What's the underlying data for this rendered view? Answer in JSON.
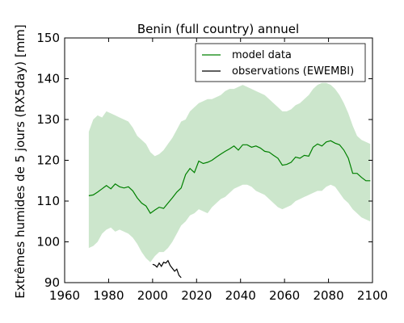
{
  "chart_data": {
    "type": "line",
    "title": "Benin (full country) annuel",
    "xlabel": "",
    "ylabel": "Extrêmes humides de 5 jours (RX5day) [mm]",
    "xlim": [
      1960,
      2100
    ],
    "ylim": [
      90,
      150
    ],
    "xticks": [
      1960,
      1980,
      2000,
      2020,
      2040,
      2060,
      2080,
      2100
    ],
    "yticks": [
      90,
      100,
      110,
      120,
      130,
      140,
      150
    ],
    "legend": {
      "position": "top-right"
    },
    "grid": false,
    "series": [
      {
        "name": "model data",
        "kind": "line",
        "color": "#008000",
        "x": [
          1971,
          1973,
          1975,
          1977,
          1979,
          1981,
          1983,
          1985,
          1987,
          1989,
          1991,
          1993,
          1995,
          1997,
          1999,
          2001,
          2003,
          2005,
          2007,
          2009,
          2011,
          2013,
          2015,
          2017,
          2019,
          2021,
          2023,
          2025,
          2027,
          2029,
          2031,
          2033,
          2035,
          2037,
          2039,
          2041,
          2043,
          2045,
          2047,
          2049,
          2051,
          2053,
          2055,
          2057,
          2059,
          2061,
          2063,
          2065,
          2067,
          2069,
          2071,
          2073,
          2075,
          2077,
          2079,
          2081,
          2083,
          2085,
          2087,
          2089,
          2091,
          2093,
          2095,
          2097,
          2099
        ],
        "y": [
          111.3,
          111.5,
          112.2,
          113.0,
          113.8,
          113.0,
          114.2,
          113.5,
          113.2,
          113.5,
          112.5,
          110.8,
          109.5,
          108.8,
          107.0,
          107.8,
          108.5,
          108.2,
          109.5,
          110.8,
          112.2,
          113.2,
          116.5,
          118.0,
          117.0,
          119.8,
          119.2,
          119.5,
          120.0,
          120.8,
          121.5,
          122.2,
          122.8,
          123.5,
          122.5,
          123.8,
          123.8,
          123.2,
          123.5,
          123.0,
          122.2,
          122.0,
          121.2,
          120.5,
          118.8,
          119.0,
          119.5,
          120.8,
          120.5,
          121.2,
          121.0,
          123.2,
          124.0,
          123.5,
          124.5,
          124.8,
          124.2,
          123.8,
          122.5,
          120.5,
          116.8,
          116.8,
          115.8,
          115.0,
          115.0
        ]
      },
      {
        "name": "model range",
        "kind": "band",
        "color": "#008000",
        "x": [
          1971,
          1973,
          1975,
          1977,
          1979,
          1981,
          1983,
          1985,
          1987,
          1989,
          1991,
          1993,
          1995,
          1997,
          1999,
          2001,
          2003,
          2005,
          2007,
          2009,
          2011,
          2013,
          2015,
          2017,
          2019,
          2021,
          2023,
          2025,
          2027,
          2029,
          2031,
          2033,
          2035,
          2037,
          2039,
          2041,
          2043,
          2045,
          2047,
          2049,
          2051,
          2053,
          2055,
          2057,
          2059,
          2061,
          2063,
          2065,
          2067,
          2069,
          2071,
          2073,
          2075,
          2077,
          2079,
          2081,
          2083,
          2085,
          2087,
          2089,
          2091,
          2093,
          2095,
          2097,
          2099
        ],
        "lower": [
          98.5,
          99.0,
          100.0,
          102.0,
          103.0,
          103.5,
          102.5,
          103.0,
          102.5,
          102.0,
          101.0,
          99.5,
          97.5,
          96.0,
          95.0,
          96.5,
          97.5,
          97.5,
          98.5,
          100.0,
          102.0,
          104.0,
          105.0,
          106.5,
          107.0,
          108.0,
          107.5,
          107.0,
          108.5,
          109.5,
          110.5,
          111.0,
          112.0,
          113.0,
          113.5,
          114.0,
          114.0,
          113.5,
          112.5,
          112.0,
          111.5,
          110.5,
          109.5,
          108.5,
          108.0,
          108.5,
          109.0,
          110.0,
          110.5,
          111.0,
          111.5,
          112.0,
          112.5,
          112.5,
          113.5,
          114.0,
          113.5,
          112.0,
          110.5,
          109.5,
          108.0,
          107.0,
          106.0,
          105.5,
          105.0
        ],
        "upper": [
          127.0,
          130.0,
          131.0,
          130.5,
          132.0,
          131.5,
          131.0,
          130.5,
          130.0,
          129.5,
          128.0,
          126.0,
          125.0,
          124.0,
          122.0,
          121.0,
          121.5,
          122.5,
          124.0,
          125.5,
          127.5,
          129.5,
          130.0,
          132.0,
          133.0,
          134.0,
          134.5,
          135.0,
          135.0,
          135.5,
          136.0,
          137.0,
          137.5,
          137.5,
          138.0,
          138.5,
          138.0,
          137.5,
          137.0,
          136.5,
          136.0,
          135.0,
          134.0,
          133.0,
          132.0,
          132.0,
          132.5,
          133.5,
          134.0,
          135.0,
          136.0,
          137.5,
          138.5,
          139.0,
          139.0,
          138.5,
          137.5,
          136.0,
          134.0,
          131.5,
          128.5,
          126.0,
          125.0,
          124.5,
          124.0
        ]
      },
      {
        "name": "observations (EWEMBI)",
        "kind": "line",
        "color": "#000000",
        "x": [
          2000,
          2001,
          2002,
          2003,
          2004,
          2005,
          2006,
          2007,
          2008,
          2009,
          2010,
          2011,
          2012,
          2013
        ],
        "y": [
          94.5,
          94.3,
          93.8,
          94.8,
          94.0,
          95.0,
          94.8,
          95.4,
          94.2,
          93.5,
          92.8,
          93.3,
          91.8,
          91.2
        ]
      }
    ]
  }
}
